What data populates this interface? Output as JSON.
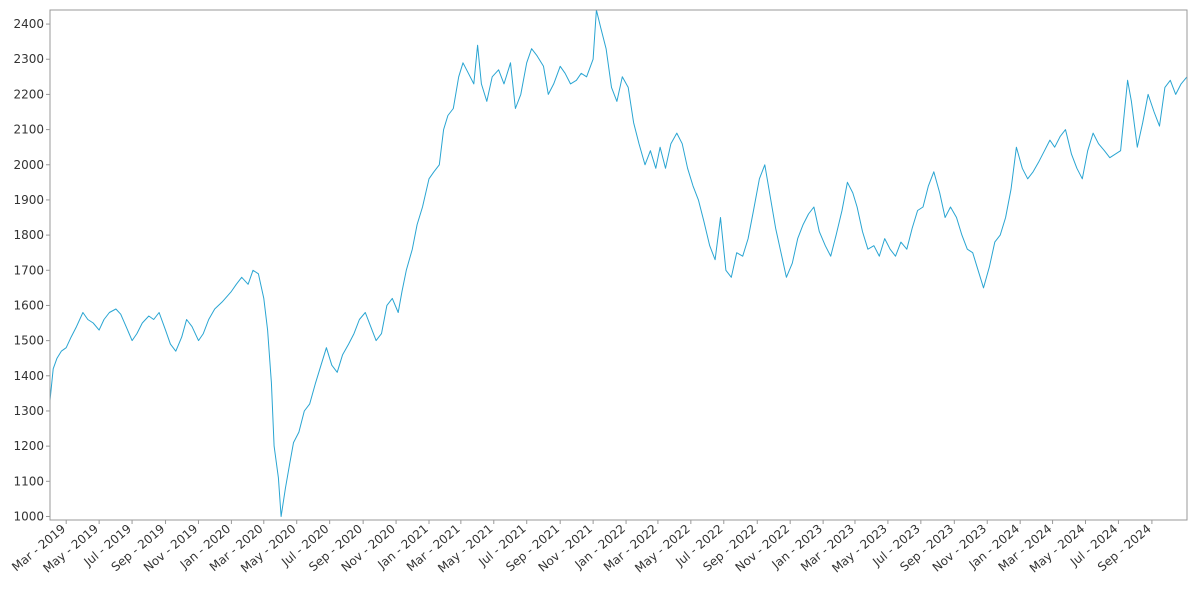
{
  "chart_data": {
    "type": "line",
    "title": "",
    "xlabel": "",
    "ylabel": "",
    "grid": false,
    "legend": "none",
    "ylim": [
      990,
      2440
    ],
    "xlim": [
      "2019-01-30",
      "2024-11-05"
    ],
    "y_ticks": [
      1000,
      1100,
      1200,
      1300,
      1400,
      1500,
      1600,
      1700,
      1800,
      1900,
      2000,
      2100,
      2200,
      2300,
      2400
    ],
    "x_ticks": [
      {
        "date": "2019-03-01",
        "label": "Mar - 2019"
      },
      {
        "date": "2019-05-01",
        "label": "May - 2019"
      },
      {
        "date": "2019-07-01",
        "label": "Jul - 2019"
      },
      {
        "date": "2019-09-01",
        "label": "Sep - 2019"
      },
      {
        "date": "2019-11-01",
        "label": "Nov - 2019"
      },
      {
        "date": "2020-01-01",
        "label": "Jan - 2020"
      },
      {
        "date": "2020-03-01",
        "label": "Mar - 2020"
      },
      {
        "date": "2020-05-01",
        "label": "May - 2020"
      },
      {
        "date": "2020-07-01",
        "label": "Jul - 2020"
      },
      {
        "date": "2020-09-01",
        "label": "Sep - 2020"
      },
      {
        "date": "2020-11-01",
        "label": "Nov - 2020"
      },
      {
        "date": "2021-01-01",
        "label": "Jan - 2021"
      },
      {
        "date": "2021-03-01",
        "label": "Mar - 2021"
      },
      {
        "date": "2021-05-01",
        "label": "May - 2021"
      },
      {
        "date": "2021-07-01",
        "label": "Jul - 2021"
      },
      {
        "date": "2021-09-01",
        "label": "Sep - 2021"
      },
      {
        "date": "2021-11-01",
        "label": "Nov - 2021"
      },
      {
        "date": "2022-01-01",
        "label": "Jan - 2022"
      },
      {
        "date": "2022-03-01",
        "label": "Mar - 2022"
      },
      {
        "date": "2022-05-01",
        "label": "May - 2022"
      },
      {
        "date": "2022-07-01",
        "label": "Jul - 2022"
      },
      {
        "date": "2022-09-01",
        "label": "Sep - 2022"
      },
      {
        "date": "2022-11-01",
        "label": "Nov - 2022"
      },
      {
        "date": "2023-01-01",
        "label": "Jan - 2023"
      },
      {
        "date": "2023-03-01",
        "label": "Mar - 2023"
      },
      {
        "date": "2023-05-01",
        "label": "May - 2023"
      },
      {
        "date": "2023-07-01",
        "label": "Jul - 2023"
      },
      {
        "date": "2023-09-01",
        "label": "Sep - 2023"
      },
      {
        "date": "2023-11-01",
        "label": "Nov - 2023"
      },
      {
        "date": "2024-01-01",
        "label": "Jan - 2024"
      },
      {
        "date": "2024-03-01",
        "label": "Mar - 2024"
      },
      {
        "date": "2024-05-01",
        "label": "May - 2024"
      },
      {
        "date": "2024-07-01",
        "label": "Jul - 2024"
      },
      {
        "date": "2024-09-01",
        "label": "Sep - 2024"
      }
    ],
    "series": [
      {
        "color": "#2aa5d2",
        "points": [
          [
            "2019-01-30",
            1330
          ],
          [
            "2019-02-05",
            1420
          ],
          [
            "2019-02-12",
            1450
          ],
          [
            "2019-02-20",
            1470
          ],
          [
            "2019-03-01",
            1480
          ],
          [
            "2019-03-10",
            1510
          ],
          [
            "2019-03-20",
            1540
          ],
          [
            "2019-04-01",
            1580
          ],
          [
            "2019-04-10",
            1560
          ],
          [
            "2019-04-20",
            1550
          ],
          [
            "2019-05-01",
            1530
          ],
          [
            "2019-05-10",
            1560
          ],
          [
            "2019-05-20",
            1580
          ],
          [
            "2019-06-01",
            1590
          ],
          [
            "2019-06-10",
            1575
          ],
          [
            "2019-06-20",
            1540
          ],
          [
            "2019-07-01",
            1500
          ],
          [
            "2019-07-10",
            1520
          ],
          [
            "2019-07-20",
            1550
          ],
          [
            "2019-08-01",
            1570
          ],
          [
            "2019-08-10",
            1560
          ],
          [
            "2019-08-20",
            1580
          ],
          [
            "2019-09-01",
            1530
          ],
          [
            "2019-09-10",
            1490
          ],
          [
            "2019-09-20",
            1470
          ],
          [
            "2019-10-01",
            1510
          ],
          [
            "2019-10-10",
            1560
          ],
          [
            "2019-10-20",
            1540
          ],
          [
            "2019-11-01",
            1500
          ],
          [
            "2019-11-10",
            1520
          ],
          [
            "2019-11-20",
            1560
          ],
          [
            "2019-12-01",
            1590
          ],
          [
            "2019-12-15",
            1610
          ],
          [
            "2020-01-01",
            1640
          ],
          [
            "2020-01-10",
            1660
          ],
          [
            "2020-01-20",
            1680
          ],
          [
            "2020-02-01",
            1660
          ],
          [
            "2020-02-10",
            1700
          ],
          [
            "2020-02-20",
            1690
          ],
          [
            "2020-03-01",
            1620
          ],
          [
            "2020-03-08",
            1530
          ],
          [
            "2020-03-15",
            1380
          ],
          [
            "2020-03-20",
            1200
          ],
          [
            "2020-03-28",
            1110
          ],
          [
            "2020-04-02",
            1000
          ],
          [
            "2020-04-10",
            1080
          ],
          [
            "2020-04-18",
            1150
          ],
          [
            "2020-04-25",
            1210
          ],
          [
            "2020-05-05",
            1240
          ],
          [
            "2020-05-15",
            1300
          ],
          [
            "2020-05-25",
            1320
          ],
          [
            "2020-06-05",
            1380
          ],
          [
            "2020-06-15",
            1430
          ],
          [
            "2020-06-25",
            1480
          ],
          [
            "2020-07-05",
            1430
          ],
          [
            "2020-07-15",
            1410
          ],
          [
            "2020-07-25",
            1460
          ],
          [
            "2020-08-05",
            1490
          ],
          [
            "2020-08-15",
            1520
          ],
          [
            "2020-08-25",
            1560
          ],
          [
            "2020-09-05",
            1580
          ],
          [
            "2020-09-15",
            1540
          ],
          [
            "2020-09-25",
            1500
          ],
          [
            "2020-10-05",
            1520
          ],
          [
            "2020-10-15",
            1600
          ],
          [
            "2020-10-25",
            1620
          ],
          [
            "2020-11-05",
            1580
          ],
          [
            "2020-11-12",
            1640
          ],
          [
            "2020-11-20",
            1700
          ],
          [
            "2020-12-01",
            1760
          ],
          [
            "2020-12-10",
            1830
          ],
          [
            "2020-12-20",
            1880
          ],
          [
            "2021-01-01",
            1960
          ],
          [
            "2021-01-10",
            1980
          ],
          [
            "2021-01-20",
            2000
          ],
          [
            "2021-01-28",
            2100
          ],
          [
            "2021-02-05",
            2140
          ],
          [
            "2021-02-15",
            2160
          ],
          [
            "2021-02-25",
            2250
          ],
          [
            "2021-03-05",
            2290
          ],
          [
            "2021-03-15",
            2260
          ],
          [
            "2021-03-25",
            2230
          ],
          [
            "2021-04-01",
            2340
          ],
          [
            "2021-04-08",
            2230
          ],
          [
            "2021-04-18",
            2180
          ],
          [
            "2021-04-28",
            2250
          ],
          [
            "2021-05-10",
            2270
          ],
          [
            "2021-05-20",
            2230
          ],
          [
            "2021-06-01",
            2290
          ],
          [
            "2021-06-10",
            2160
          ],
          [
            "2021-06-20",
            2200
          ],
          [
            "2021-07-01",
            2290
          ],
          [
            "2021-07-10",
            2330
          ],
          [
            "2021-07-20",
            2310
          ],
          [
            "2021-08-01",
            2280
          ],
          [
            "2021-08-10",
            2200
          ],
          [
            "2021-08-20",
            2230
          ],
          [
            "2021-09-01",
            2280
          ],
          [
            "2021-09-10",
            2260
          ],
          [
            "2021-09-20",
            2230
          ],
          [
            "2021-10-01",
            2240
          ],
          [
            "2021-10-10",
            2260
          ],
          [
            "2021-10-20",
            2250
          ],
          [
            "2021-11-01",
            2300
          ],
          [
            "2021-11-07",
            2440
          ],
          [
            "2021-11-15",
            2390
          ],
          [
            "2021-11-25",
            2330
          ],
          [
            "2021-12-05",
            2220
          ],
          [
            "2021-12-15",
            2180
          ],
          [
            "2021-12-25",
            2250
          ],
          [
            "2022-01-05",
            2220
          ],
          [
            "2022-01-15",
            2120
          ],
          [
            "2022-01-25",
            2060
          ],
          [
            "2022-02-05",
            2000
          ],
          [
            "2022-02-15",
            2040
          ],
          [
            "2022-02-25",
            1990
          ],
          [
            "2022-03-05",
            2050
          ],
          [
            "2022-03-15",
            1990
          ],
          [
            "2022-03-25",
            2060
          ],
          [
            "2022-04-05",
            2090
          ],
          [
            "2022-04-15",
            2060
          ],
          [
            "2022-04-25",
            1990
          ],
          [
            "2022-05-05",
            1940
          ],
          [
            "2022-05-15",
            1900
          ],
          [
            "2022-05-25",
            1840
          ],
          [
            "2022-06-05",
            1770
          ],
          [
            "2022-06-15",
            1730
          ],
          [
            "2022-06-25",
            1850
          ],
          [
            "2022-07-05",
            1700
          ],
          [
            "2022-07-15",
            1680
          ],
          [
            "2022-07-25",
            1750
          ],
          [
            "2022-08-05",
            1740
          ],
          [
            "2022-08-15",
            1790
          ],
          [
            "2022-08-25",
            1870
          ],
          [
            "2022-09-05",
            1960
          ],
          [
            "2022-09-15",
            2000
          ],
          [
            "2022-09-25",
            1910
          ],
          [
            "2022-10-05",
            1820
          ],
          [
            "2022-10-15",
            1750
          ],
          [
            "2022-10-25",
            1680
          ],
          [
            "2022-11-05",
            1720
          ],
          [
            "2022-11-15",
            1790
          ],
          [
            "2022-11-25",
            1830
          ],
          [
            "2022-12-05",
            1860
          ],
          [
            "2022-12-15",
            1880
          ],
          [
            "2022-12-25",
            1810
          ],
          [
            "2023-01-05",
            1770
          ],
          [
            "2023-01-15",
            1740
          ],
          [
            "2023-01-25",
            1800
          ],
          [
            "2023-02-05",
            1870
          ],
          [
            "2023-02-15",
            1950
          ],
          [
            "2023-02-25",
            1920
          ],
          [
            "2023-03-05",
            1880
          ],
          [
            "2023-03-15",
            1810
          ],
          [
            "2023-03-25",
            1760
          ],
          [
            "2023-04-05",
            1770
          ],
          [
            "2023-04-15",
            1740
          ],
          [
            "2023-04-25",
            1790
          ],
          [
            "2023-05-05",
            1760
          ],
          [
            "2023-05-15",
            1740
          ],
          [
            "2023-05-25",
            1780
          ],
          [
            "2023-06-05",
            1760
          ],
          [
            "2023-06-15",
            1820
          ],
          [
            "2023-06-25",
            1870
          ],
          [
            "2023-07-05",
            1880
          ],
          [
            "2023-07-15",
            1940
          ],
          [
            "2023-07-25",
            1980
          ],
          [
            "2023-08-05",
            1920
          ],
          [
            "2023-08-15",
            1850
          ],
          [
            "2023-08-25",
            1880
          ],
          [
            "2023-09-05",
            1850
          ],
          [
            "2023-09-15",
            1800
          ],
          [
            "2023-09-25",
            1760
          ],
          [
            "2023-10-05",
            1750
          ],
          [
            "2023-10-15",
            1700
          ],
          [
            "2023-10-25",
            1650
          ],
          [
            "2023-11-05",
            1710
          ],
          [
            "2023-11-15",
            1780
          ],
          [
            "2023-11-25",
            1800
          ],
          [
            "2023-12-05",
            1850
          ],
          [
            "2023-12-15",
            1930
          ],
          [
            "2023-12-25",
            2050
          ],
          [
            "2024-01-05",
            1990
          ],
          [
            "2024-01-15",
            1960
          ],
          [
            "2024-01-25",
            1980
          ],
          [
            "2024-02-05",
            2010
          ],
          [
            "2024-02-15",
            2040
          ],
          [
            "2024-02-25",
            2070
          ],
          [
            "2024-03-05",
            2050
          ],
          [
            "2024-03-15",
            2080
          ],
          [
            "2024-03-25",
            2100
          ],
          [
            "2024-04-05",
            2030
          ],
          [
            "2024-04-15",
            1990
          ],
          [
            "2024-04-25",
            1960
          ],
          [
            "2024-05-05",
            2040
          ],
          [
            "2024-05-15",
            2090
          ],
          [
            "2024-05-25",
            2060
          ],
          [
            "2024-06-05",
            2040
          ],
          [
            "2024-06-15",
            2020
          ],
          [
            "2024-06-25",
            2030
          ],
          [
            "2024-07-05",
            2040
          ],
          [
            "2024-07-12",
            2150
          ],
          [
            "2024-07-18",
            2240
          ],
          [
            "2024-07-25",
            2180
          ],
          [
            "2024-08-05",
            2050
          ],
          [
            "2024-08-15",
            2120
          ],
          [
            "2024-08-25",
            2200
          ],
          [
            "2024-09-05",
            2150
          ],
          [
            "2024-09-15",
            2110
          ],
          [
            "2024-09-25",
            2220
          ],
          [
            "2024-10-05",
            2240
          ],
          [
            "2024-10-15",
            2200
          ],
          [
            "2024-10-25",
            2230
          ],
          [
            "2024-11-05",
            2250
          ]
        ]
      }
    ]
  }
}
